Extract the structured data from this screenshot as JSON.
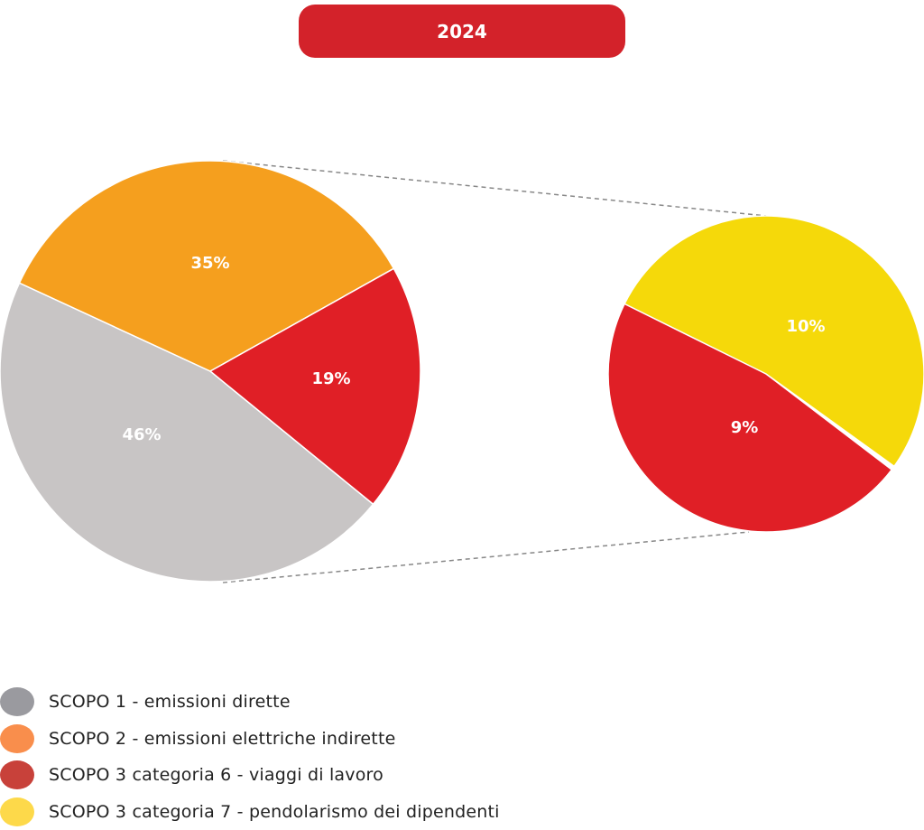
{
  "title": "2024",
  "chart_data": {
    "type": "pie",
    "subtype": "pie-of-pie",
    "title": "2024",
    "main_pie": {
      "slices": [
        {
          "name": "SCOPO 1 - emissioni dirette",
          "value": 46,
          "label": "46%",
          "color": "#c8c5c5"
        },
        {
          "name": "SCOPO 2 - emissioni elettriche indirette",
          "value": 35,
          "label": "35%",
          "color": "#f59f1e"
        },
        {
          "name": "SCOPO 3",
          "value": 19,
          "label": "19%",
          "color": "#e01f26"
        }
      ]
    },
    "secondary_pie": {
      "slices": [
        {
          "name": "SCOPO 3 categoria 6 - viaggi di lavoro",
          "value": 9,
          "label": "9%",
          "color": "#e01f26"
        },
        {
          "name": "SCOPO 3 categoria 7 - pendolarismo dei dipendenti",
          "value": 10,
          "label": "10%",
          "color": "#f5d90a"
        }
      ]
    },
    "legend": {
      "position": "bottom-left",
      "entries": [
        {
          "label": "SCOPO 1 - emissioni dirette",
          "color": "#9a9a9f"
        },
        {
          "label": "SCOPO 2 - emissioni elettriche indirette",
          "color": "#f98e4c"
        },
        {
          "label": "SCOPO 3 categoria 6 - viaggi di lavoro",
          "color": "#c8413a"
        },
        {
          "label": "SCOPO 3 categoria 7 - pendolarismo dei dipendenti",
          "color": "#fdd94a"
        }
      ]
    }
  }
}
